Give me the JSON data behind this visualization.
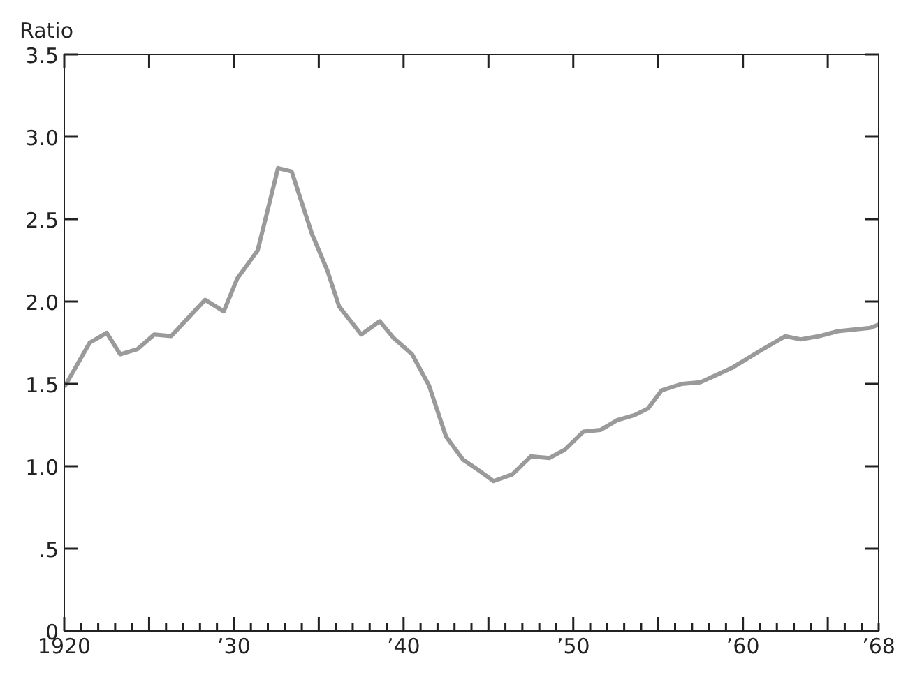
{
  "chart_data": {
    "type": "line",
    "ylabel": "Ratio",
    "color": "#9a9a9a",
    "x": [
      1920,
      1921.5,
      1922.5,
      1923.3,
      1924.3,
      1925.3,
      1926.3,
      1927.3,
      1928.3,
      1929.4,
      1930.2,
      1931.4,
      1932.6,
      1933.4,
      1934.6,
      1935.5,
      1936.2,
      1937.5,
      1938.6,
      1939.4,
      1940.5,
      1941.5,
      1942.5,
      1943.5,
      1944.5,
      1945.3,
      1946.4,
      1947.5,
      1948.6,
      1949.5,
      1950.6,
      1951.6,
      1952.6,
      1953.6,
      1954.4,
      1955.2,
      1956.4,
      1957.5,
      1959.4,
      1961,
      1962.5,
      1963.4,
      1964.5,
      1965.6,
      1967.5,
      1968
    ],
    "values": [
      1.48,
      1.75,
      1.81,
      1.68,
      1.71,
      1.8,
      1.79,
      1.9,
      2.01,
      1.94,
      2.14,
      2.31,
      2.81,
      2.79,
      2.41,
      2.19,
      1.97,
      1.8,
      1.88,
      1.78,
      1.68,
      1.49,
      1.18,
      1.04,
      0.97,
      0.91,
      0.95,
      1.06,
      1.05,
      1.1,
      1.21,
      1.22,
      1.28,
      1.31,
      1.35,
      1.46,
      1.5,
      1.51,
      1.6,
      1.7,
      1.79,
      1.77,
      1.79,
      1.82,
      1.84,
      1.86
    ],
    "xlim": [
      1920,
      1968
    ],
    "ylim": [
      0,
      3.5
    ],
    "xticks": [
      {
        "value": 1920,
        "label": "1920"
      },
      {
        "value": 1921,
        "label": null
      },
      {
        "value": 1922,
        "label": null
      },
      {
        "value": 1923,
        "label": null
      },
      {
        "value": 1924,
        "label": null
      },
      {
        "value": 1925,
        "label": null
      },
      {
        "value": 1926,
        "label": null
      },
      {
        "value": 1927,
        "label": null
      },
      {
        "value": 1928,
        "label": null
      },
      {
        "value": 1929,
        "label": null
      },
      {
        "value": 1930,
        "label": "’30"
      },
      {
        "value": 1931,
        "label": null
      },
      {
        "value": 1932,
        "label": null
      },
      {
        "value": 1933,
        "label": null
      },
      {
        "value": 1934,
        "label": null
      },
      {
        "value": 1935,
        "label": null
      },
      {
        "value": 1936,
        "label": null
      },
      {
        "value": 1937,
        "label": null
      },
      {
        "value": 1938,
        "label": null
      },
      {
        "value": 1939,
        "label": null
      },
      {
        "value": 1940,
        "label": "’40"
      },
      {
        "value": 1941,
        "label": null
      },
      {
        "value": 1942,
        "label": null
      },
      {
        "value": 1943,
        "label": null
      },
      {
        "value": 1944,
        "label": null
      },
      {
        "value": 1945,
        "label": null
      },
      {
        "value": 1946,
        "label": null
      },
      {
        "value": 1947,
        "label": null
      },
      {
        "value": 1948,
        "label": null
      },
      {
        "value": 1949,
        "label": null
      },
      {
        "value": 1950,
        "label": "’50"
      },
      {
        "value": 1951,
        "label": null
      },
      {
        "value": 1952,
        "label": null
      },
      {
        "value": 1953,
        "label": null
      },
      {
        "value": 1954,
        "label": null
      },
      {
        "value": 1955,
        "label": null
      },
      {
        "value": 1956,
        "label": null
      },
      {
        "value": 1957,
        "label": null
      },
      {
        "value": 1958,
        "label": null
      },
      {
        "value": 1959,
        "label": null
      },
      {
        "value": 1960,
        "label": "’60"
      },
      {
        "value": 1961,
        "label": null
      },
      {
        "value": 1962,
        "label": null
      },
      {
        "value": 1963,
        "label": null
      },
      {
        "value": 1964,
        "label": null
      },
      {
        "value": 1965,
        "label": null
      },
      {
        "value": 1966,
        "label": null
      },
      {
        "value": 1967,
        "label": null
      },
      {
        "value": 1968,
        "label": "’68"
      }
    ],
    "yticks": [
      0,
      {
        "value": 0.5,
        "label": ".5"
      },
      {
        "value": 1,
        "label": "1.0"
      },
      1.5,
      {
        "value": 2,
        "label": "2.0"
      },
      2.5,
      {
        "value": 3,
        "label": "3.0"
      },
      3.5
    ]
  }
}
